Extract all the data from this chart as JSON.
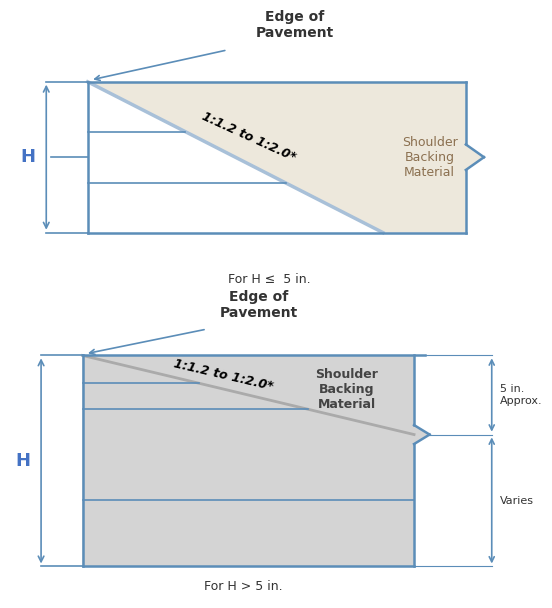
{
  "fig_width": 5.18,
  "fig_height": 5.8,
  "bg_color": "#ffffff",
  "line_color": "#5B8DB8",
  "line_color_dark": "#4472c4",
  "fill_color_top": "#EDE8DC",
  "fill_color_bottom": "#D4D4D4",
  "text_color": "#333333",
  "title_top": "For H ≤  5 in.",
  "title_bottom": "For H > 5 in.",
  "slope_label": "1:1.2 to 1:2.0*",
  "label_shoulder": "Shoulder\nBacking\nMaterial",
  "label_shoulder2": "Shoulder\nBacking\nMaterial",
  "label_edge": "Edge of\nPavement",
  "label_H": "H",
  "label_5in": "5 in.\nApprox.",
  "label_varies": "Varies"
}
